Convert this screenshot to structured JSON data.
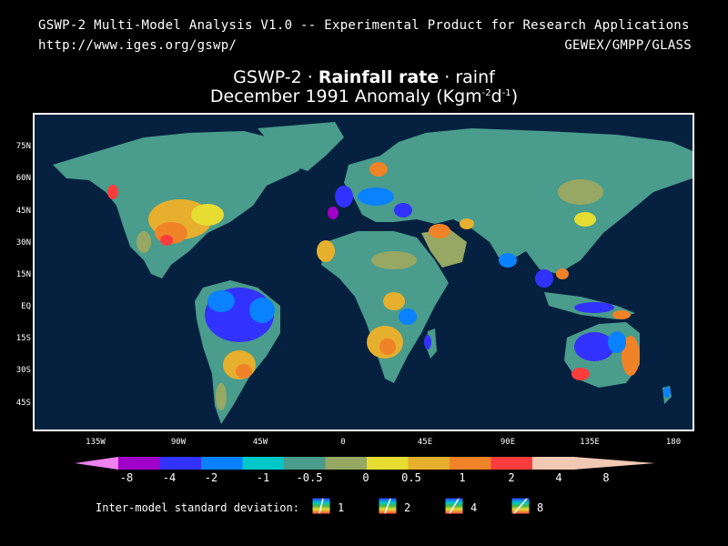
{
  "header": {
    "line1": "GSWP-2 Multi-Model Analysis V1.0 -- Experimental Product for Research Applications",
    "url": "http://www.iges.org/gswp/",
    "right": "GEWEX/GMPP/GLASS"
  },
  "title": {
    "product": "GSWP-2 · ",
    "variable": "Rainfall rate",
    "short_name": " · rainf",
    "period": "December 1991 Anomaly (Kgm",
    "unit_exp1": "-2",
    "unit_mid": "d",
    "unit_exp2": "-1",
    "unit_close": ")"
  },
  "map": {
    "lat_labels": [
      "75N",
      "60N",
      "45N",
      "30N",
      "15N",
      "EQ",
      "15S",
      "30S",
      "45S"
    ],
    "lon_labels": [
      "135W",
      "90W",
      "45W",
      "0",
      "45E",
      "90E",
      "135E",
      "180"
    ],
    "ocean_color": "#06213f"
  },
  "colorbar": {
    "labels": [
      "-8",
      "-4",
      "-2",
      "-1",
      "-0.5",
      "0",
      "0.5",
      "1",
      "2",
      "4",
      "8"
    ],
    "colors": [
      "#ee82ee",
      "#a000c8",
      "#3232ff",
      "#0a82ff",
      "#00c8c8",
      "#4a9c8c",
      "#96a864",
      "#e6dc32",
      "#e6af2d",
      "#f08228",
      "#fa3c3c",
      "#f0c8b4"
    ]
  },
  "sd_legend": {
    "label": "Inter-model standard deviation:",
    "values": [
      "1",
      "2",
      "4",
      "8"
    ]
  }
}
